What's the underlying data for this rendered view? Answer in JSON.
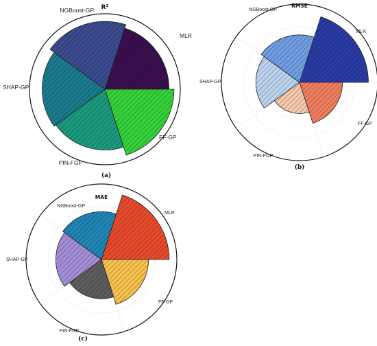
{
  "chart_data": [
    {
      "type": "polar_bar",
      "panel_label": "(a)",
      "title": "R²",
      "categories": [
        "MLR",
        "FF-GP",
        "PIN-FGP",
        "SHAP-GP",
        "NGBoost-GP"
      ],
      "values": [
        0.9,
        0.97,
        0.85,
        0.88,
        0.95
      ],
      "colors": [
        "#3b0f4f",
        "#35d13a",
        "#1c9a7e",
        "#1b7b8e",
        "#3b4b8f"
      ]
    },
    {
      "type": "polar_bar",
      "panel_label": "(b)",
      "title": "RMSE",
      "categories": [
        "MLR",
        "FF-GP",
        "PIN-FGP",
        "SHAP-GP",
        "NGBoost-GP"
      ],
      "values": [
        0.93,
        0.58,
        0.42,
        0.59,
        0.64
      ],
      "colors": [
        "#2b3ba6",
        "#f07e5e",
        "#f5c9ae",
        "#bcd3ee",
        "#6f9ee3"
      ]
    },
    {
      "type": "polar_bar",
      "panel_label": "(c)",
      "title": "MAE",
      "categories": [
        "MLR",
        "FF-GP",
        "PIN-FGP",
        "SHAP-GP",
        "NGBoost-GP"
      ],
      "values": [
        0.95,
        0.66,
        0.55,
        0.64,
        0.67
      ],
      "colors": [
        "#e84a2c",
        "#f7c24e",
        "#5d5d5d",
        "#a48ed8",
        "#1f86b6"
      ]
    }
  ]
}
